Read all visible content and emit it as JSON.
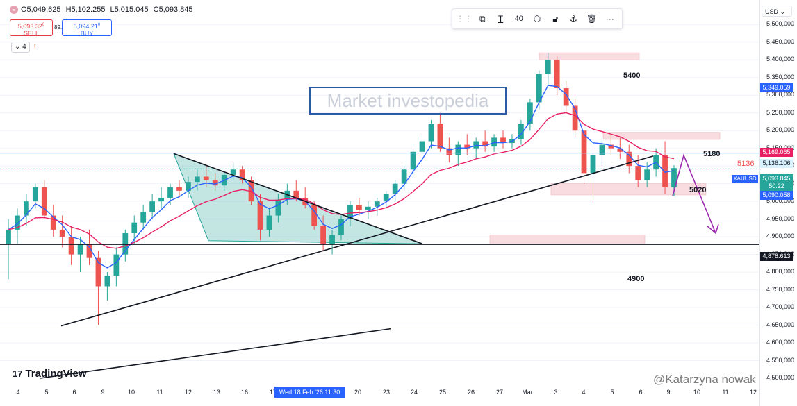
{
  "header": {
    "open": "O5,049.625",
    "high": "H5,102.255",
    "low": "L5,015.045",
    "close": "C5,093.845",
    "sell_price": "5,093.32",
    "sell_sup": "0",
    "sell_label": "SELL",
    "spread": "89.0",
    "buy_price": "5,094.21",
    "buy_sup": "0",
    "buy_label": "BUY",
    "indicator_count": "4",
    "warning": "!"
  },
  "toolbar": {
    "items": [
      "grip-icon",
      "template-icon",
      "text-icon",
      "40",
      "settings-icon",
      "lock-icon",
      "anchor-icon",
      "trash-icon",
      "more-icon"
    ],
    "font_size": "40"
  },
  "price_axis": {
    "currency": "USD",
    "ticks": [
      "5,500,000",
      "5,450,000",
      "5,400,000",
      "5,349.059",
      "5,300,000",
      "5,250,000",
      "5,200,000",
      "5,169.065",
      "5,136.106",
      "5,093.845",
      "50:22",
      "5,090.058",
      "5,050,000",
      "5,000,000",
      "4,950,000",
      "4,900,000",
      "4,878.613",
      "4,850,000",
      "4,800,000",
      "4,750,000",
      "4,700,000",
      "4,650,000",
      "4,600,000",
      "4,550,000",
      "4,500,000"
    ],
    "symbol": "XAUUSD",
    "countdown": "50:22",
    "labels": {
      "ema_blue": "5,349.059",
      "ema_red": "5,169.065",
      "line_5136": "5,136.106",
      "last": "5,093.845",
      "bid": "5,090.058",
      "hline": "4,878.613"
    }
  },
  "x_axis": {
    "ticks": [
      "4",
      "5",
      "6",
      "9",
      "10",
      "11",
      "12",
      "13",
      "16",
      "17",
      "18",
      "19",
      "20",
      "23",
      "24",
      "25",
      "26",
      "27",
      "Mar",
      "3",
      "4",
      "5",
      "6",
      "9",
      "10",
      "11",
      "12"
    ],
    "crosshair_label": "Wed 18 Feb '26   11:30"
  },
  "annotations": {
    "l5400": "5400",
    "l5180": "5180",
    "l5136": "5136",
    "l5020": "5020",
    "l4900": "4900"
  },
  "watermark": "Market investopedia",
  "brand": "TradingView",
  "author": "@Katarzyna nowak",
  "colors": {
    "up": "#26a69a",
    "down": "#ef5350",
    "ema_fast": "#2962ff",
    "ema_slow": "#e91e63",
    "zone": "#f8d7da",
    "triangle": "#26a69a",
    "arrow": "#9c27b0",
    "accent": "#2962ff"
  },
  "chart_data": {
    "type": "candlestick",
    "symbol": "XAUUSD",
    "ylim": [
      4500,
      5530
    ],
    "x_categories": [
      "4",
      "5",
      "6",
      "9",
      "10",
      "11",
      "12",
      "13",
      "16",
      "17",
      "18",
      "19",
      "20",
      "23",
      "24",
      "25",
      "26",
      "27",
      "Mar",
      "3",
      "4",
      "5",
      "6",
      "9",
      "10",
      "11",
      "12"
    ],
    "candles": [
      [
        4880,
        4950,
        4780,
        4920
      ],
      [
        4920,
        4980,
        4880,
        4960
      ],
      [
        4960,
        5020,
        4930,
        5000
      ],
      [
        5000,
        5050,
        4980,
        5040
      ],
      [
        5040,
        5060,
        4950,
        4960
      ],
      [
        4960,
        4990,
        4900,
        4920
      ],
      [
        4920,
        4960,
        4870,
        4900
      ],
      [
        4900,
        4930,
        4820,
        4850
      ],
      [
        4850,
        4900,
        4800,
        4880
      ],
      [
        4880,
        4920,
        4820,
        4840
      ],
      [
        4840,
        4860,
        4650,
        4760
      ],
      [
        4760,
        4800,
        4720,
        4790
      ],
      [
        4790,
        4870,
        4760,
        4850
      ],
      [
        4850,
        4920,
        4830,
        4910
      ],
      [
        4910,
        4960,
        4880,
        4940
      ],
      [
        4940,
        4990,
        4920,
        4970
      ],
      [
        4970,
        5020,
        4950,
        5000
      ],
      [
        5000,
        5040,
        4980,
        5010
      ],
      [
        5010,
        5050,
        4990,
        5040
      ],
      [
        5040,
        5060,
        5010,
        5030
      ],
      [
        5030,
        5070,
        5010,
        5055
      ],
      [
        5055,
        5090,
        5030,
        5070
      ],
      [
        5070,
        5100,
        5040,
        5060
      ],
      [
        5060,
        5080,
        5030,
        5045
      ],
      [
        5045,
        5085,
        5030,
        5075
      ],
      [
        5075,
        5110,
        5060,
        5090
      ],
      [
        5090,
        5100,
        5050,
        5060
      ],
      [
        5060,
        5070,
        4990,
        5000
      ],
      [
        5000,
        5020,
        4890,
        4920
      ],
      [
        4920,
        4980,
        4900,
        4960
      ],
      [
        4960,
        5020,
        4940,
        5005
      ],
      [
        5005,
        5050,
        4990,
        5030
      ],
      [
        5030,
        5060,
        5000,
        5010
      ],
      [
        5010,
        5040,
        4980,
        4990
      ],
      [
        4990,
        5000,
        4920,
        4930
      ],
      [
        4930,
        4960,
        4860,
        4880
      ],
      [
        4880,
        4920,
        4850,
        4905
      ],
      [
        4905,
        4960,
        4890,
        4950
      ],
      [
        4950,
        5000,
        4930,
        4990
      ],
      [
        4990,
        5010,
        4960,
        4975
      ],
      [
        4975,
        5000,
        4950,
        4985
      ],
      [
        4985,
        5010,
        4960,
        5000
      ],
      [
        5000,
        5030,
        4980,
        5020
      ],
      [
        5020,
        5060,
        5000,
        5050
      ],
      [
        5050,
        5100,
        5030,
        5090
      ],
      [
        5090,
        5150,
        5070,
        5140
      ],
      [
        5140,
        5190,
        5120,
        5170
      ],
      [
        5170,
        5230,
        5150,
        5220
      ],
      [
        5220,
        5250,
        5140,
        5150
      ],
      [
        5150,
        5180,
        5110,
        5130
      ],
      [
        5130,
        5170,
        5100,
        5160
      ],
      [
        5160,
        5190,
        5130,
        5150
      ],
      [
        5150,
        5180,
        5120,
        5170
      ],
      [
        5170,
        5200,
        5140,
        5155
      ],
      [
        5155,
        5190,
        5140,
        5180
      ],
      [
        5180,
        5200,
        5150,
        5165
      ],
      [
        5165,
        5190,
        5150,
        5175
      ],
      [
        5175,
        5230,
        5160,
        5220
      ],
      [
        5220,
        5290,
        5200,
        5280
      ],
      [
        5280,
        5370,
        5260,
        5360
      ],
      [
        5360,
        5420,
        5330,
        5400
      ],
      [
        5400,
        5410,
        5300,
        5320
      ],
      [
        5320,
        5340,
        5250,
        5270
      ],
      [
        5270,
        5290,
        5180,
        5200
      ],
      [
        5200,
        5210,
        5050,
        5080
      ],
      [
        5080,
        5150,
        5000,
        5130
      ],
      [
        5130,
        5180,
        5100,
        5160
      ],
      [
        5160,
        5190,
        5130,
        5150
      ],
      [
        5150,
        5180,
        5120,
        5140
      ],
      [
        5140,
        5160,
        5080,
        5100
      ],
      [
        5100,
        5130,
        5040,
        5060
      ],
      [
        5060,
        5110,
        5040,
        5090
      ],
      [
        5090,
        5150,
        5070,
        5130
      ],
      [
        5130,
        5170,
        5020,
        5040
      ],
      [
        5040,
        5102,
        5015,
        5094
      ]
    ],
    "ema_fast_label": "5,349.059",
    "ema_slow_label": "5,169.065",
    "levels": [
      {
        "label": "5400",
        "value": 5400
      },
      {
        "label": "5180",
        "value": 5180
      },
      {
        "label": "5136",
        "value": 5136
      },
      {
        "label": "5020",
        "value": 5020
      },
      {
        "label": "4900",
        "value": 4900
      }
    ],
    "horizontal_line": 4878.613
  }
}
